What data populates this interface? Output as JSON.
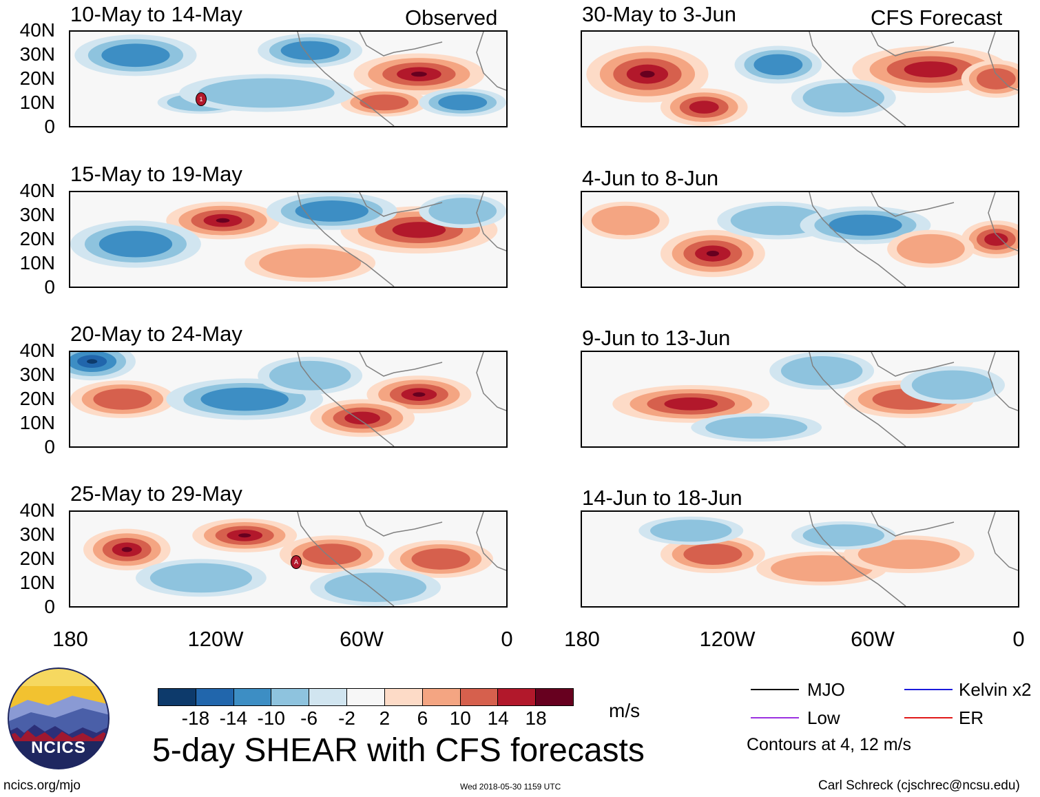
{
  "source_labels": {
    "left": "Observed",
    "right": "CFS Forecast"
  },
  "panels": {
    "observed": [
      {
        "title": "10-May to 14-May"
      },
      {
        "title": "15-May to 19-May"
      },
      {
        "title": "20-May to 24-May"
      },
      {
        "title": "25-May to 29-May"
      }
    ],
    "forecast": [
      {
        "title": "30-May to 3-Jun"
      },
      {
        "title": "4-Jun to 8-Jun"
      },
      {
        "title": "9-Jun to 13-Jun"
      },
      {
        "title": "14-Jun to 18-Jun"
      }
    ]
  },
  "axes": {
    "y_ticks": [
      "40N",
      "30N",
      "20N",
      "10N",
      "0"
    ],
    "x_ticks": [
      "180",
      "120W",
      "60W",
      "0"
    ]
  },
  "storm_markers": {
    "first": "1",
    "second": "A"
  },
  "colorbar": {
    "colors": [
      "#0d3a6b",
      "#2166ac",
      "#3d8ec4",
      "#8ec3de",
      "#d1e5f0",
      "#f7f7f7",
      "#fddbc7",
      "#f4a582",
      "#d6604d",
      "#b2182b",
      "#67001f"
    ],
    "labels": [
      "-18",
      "-14",
      "-10",
      "-6",
      "-2",
      "2",
      "6",
      "10",
      "14",
      "18"
    ],
    "units": "m/s"
  },
  "legend": {
    "items": [
      {
        "label": "MJO",
        "color": "#000000"
      },
      {
        "label": "Kelvin x2",
        "color": "#1a1adc"
      },
      {
        "label": "Low",
        "color": "#9b30e0"
      },
      {
        "label": "ER",
        "color": "#e01818"
      }
    ],
    "note": "Contours at 4, 12 m/s"
  },
  "main_title": "5-day SHEAR with CFS forecasts",
  "logo_text": "NCICS",
  "footer": {
    "url": "ncics.org/mjo",
    "timestamp": "Wed 2018-05-30 1159 UTC",
    "credit": "Carl Schreck (cjschrec@ncsu.edu)"
  }
}
